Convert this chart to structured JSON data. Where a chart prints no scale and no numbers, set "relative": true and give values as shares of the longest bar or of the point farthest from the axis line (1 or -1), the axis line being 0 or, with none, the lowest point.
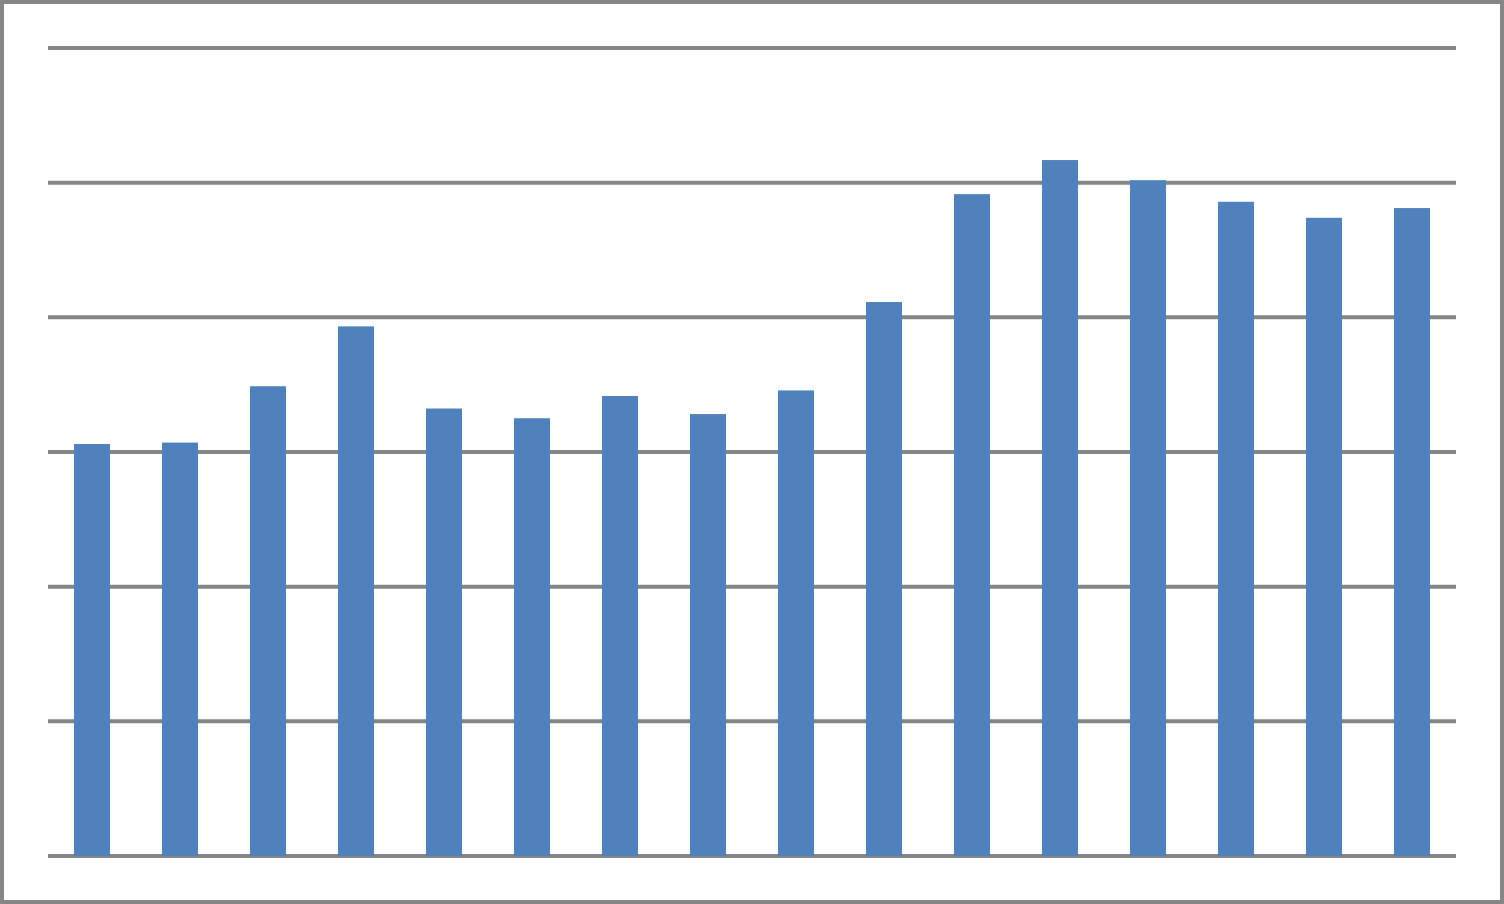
{
  "chart_data": {
    "type": "bar",
    "relative": true,
    "grid": true,
    "color": "#4f81bd",
    "categories": [
      null,
      null,
      null,
      null,
      null,
      null,
      null,
      null,
      null,
      null,
      null,
      null,
      null,
      null,
      null,
      null
    ],
    "values": [
      0.592,
      0.594,
      0.675,
      0.761,
      0.643,
      0.629,
      0.661,
      0.635,
      0.669,
      0.796,
      0.951,
      1,
      0.971,
      0.94,
      0.917,
      0.931
    ]
  }
}
